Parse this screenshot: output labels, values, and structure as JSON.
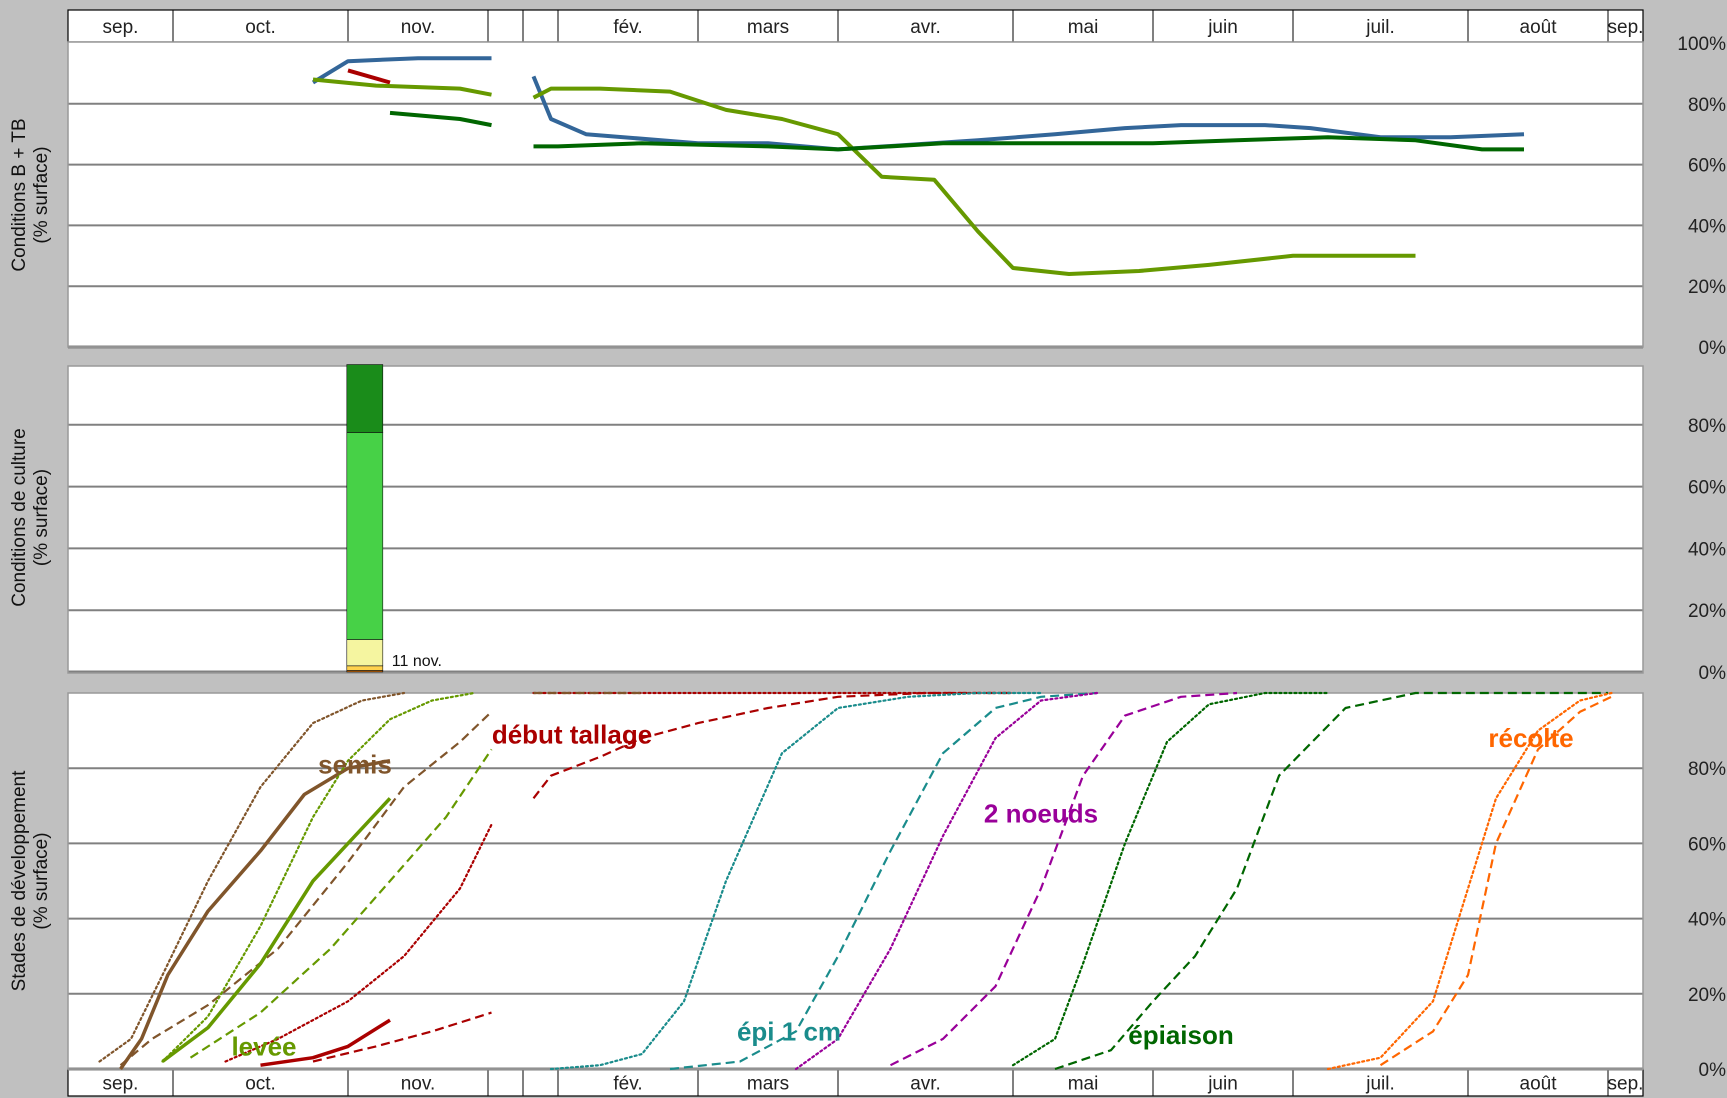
{
  "months": [
    "sep.",
    "oct.",
    "nov.",
    "",
    "",
    "fév.",
    "mars",
    "avr.",
    "mai",
    "juin",
    "juil.",
    "août",
    "sep."
  ],
  "chart_data": [
    {
      "type": "line",
      "ylabel_lines": [
        "Conditions B + TB",
        "(% surface)"
      ],
      "x_unit": "month index (0 = sep.)",
      "ylim": [
        0,
        100
      ],
      "yticks": [
        "0%",
        "20%",
        "40%",
        "60%",
        "80%",
        "100%"
      ],
      "grid": true,
      "series": [
        {
          "color": "#336699",
          "x": [
            1.8,
            2.0,
            2.5,
            3.1
          ],
          "y": [
            87,
            94,
            95,
            95
          ]
        },
        {
          "color": "#336699",
          "x": [
            4.3,
            4.8,
            5.2,
            6.0,
            6.5,
            7.0,
            7.8,
            8.3,
            8.8,
            9.2,
            9.8,
            10.1,
            10.5,
            10.9,
            11.4
          ],
          "y": [
            89,
            75,
            70,
            67,
            67,
            65,
            68,
            70,
            72,
            73,
            73,
            72,
            69,
            69,
            70
          ]
        },
        {
          "color": "#aa0000",
          "x": [
            2.0,
            2.3
          ],
          "y": [
            91,
            87
          ]
        },
        {
          "color": "#669900",
          "x": [
            1.8,
            2.2,
            2.8,
            3.1
          ],
          "y": [
            88,
            86,
            85,
            83
          ]
        },
        {
          "color": "#669900",
          "x": [
            4.3,
            4.8,
            5.3,
            5.8,
            6.2,
            6.6,
            7.0,
            7.25,
            7.55,
            7.8,
            8.0,
            8.4,
            8.9,
            9.4,
            10.0,
            10.7
          ],
          "y": [
            82,
            85,
            85,
            84,
            78,
            75,
            70,
            56,
            55,
            38,
            26,
            24,
            25,
            27,
            30,
            30
          ]
        },
        {
          "color": "#006600",
          "x": [
            2.3,
            2.8,
            3.1
          ],
          "y": [
            77,
            75,
            73
          ]
        },
        {
          "color": "#006600",
          "x": [
            4.3,
            5.0,
            5.6,
            6.5,
            7.0,
            7.6,
            8.3,
            9.0,
            9.6,
            10.2,
            10.7,
            11.1,
            11.4
          ],
          "y": [
            66,
            66,
            67,
            66,
            65,
            67,
            67,
            67,
            68,
            69,
            68,
            65,
            65
          ]
        }
      ]
    },
    {
      "type": "bar",
      "ylabel_lines": [
        "Conditions de culture",
        "(% surface)"
      ],
      "categories": [
        "11 nov."
      ],
      "ylim": [
        0,
        100
      ],
      "yticks": [
        "0%",
        "20%",
        "40%",
        "60%",
        "80%"
      ],
      "grid": true,
      "x": 2.12,
      "stack_colors": [
        "#cc6600",
        "#ffd24d",
        "#f5f5a0",
        "#47d147",
        "#1a8c1a"
      ],
      "stack_values": [
        0.5,
        1.5,
        8.5,
        67,
        22
      ]
    },
    {
      "type": "line",
      "ylabel_lines": [
        "Stades de développement",
        "(% surface)"
      ],
      "ylim": [
        0,
        100
      ],
      "yticks": [
        "0%",
        "20%",
        "40%",
        "60%",
        "80%"
      ],
      "grid": true,
      "series": [
        {
          "color": "#80552b",
          "dash": "dot",
          "x": [
            0.3,
            0.6,
            0.9,
            1.2,
            1.5,
            1.8,
            2.1,
            2.4
          ],
          "y": [
            2,
            8,
            25,
            50,
            75,
            92,
            98,
            100
          ]
        },
        {
          "color": "#80552b",
          "dash": "solid",
          "x": [
            0.5,
            0.7,
            0.95,
            1.2,
            1.5,
            1.75,
            2.0,
            2.3
          ],
          "y": [
            0,
            8,
            25,
            42,
            58,
            73,
            80,
            82
          ]
        },
        {
          "color": "#80552b",
          "dash": "dash",
          "x": [
            0.5,
            0.8,
            1.2,
            1.6,
            2.0,
            2.4,
            2.8,
            3.1
          ],
          "y": [
            1,
            8,
            17,
            32,
            55,
            75,
            87,
            95
          ]
        },
        {
          "color": "#669900",
          "dash": "dot",
          "x": [
            0.9,
            1.2,
            1.5,
            1.8,
            2.0,
            2.3,
            2.6,
            2.9
          ],
          "y": [
            2,
            14,
            38,
            67,
            82,
            93,
            98,
            100
          ]
        },
        {
          "color": "#669900",
          "dash": "solid",
          "x": [
            0.9,
            1.2,
            1.5,
            1.8,
            2.0,
            2.3
          ],
          "y": [
            2,
            11,
            28,
            50,
            60,
            72
          ]
        },
        {
          "color": "#669900",
          "dash": "dash",
          "x": [
            1.1,
            1.5,
            1.9,
            2.3,
            2.7,
            3.1
          ],
          "y": [
            3,
            15,
            32,
            50,
            67,
            85
          ]
        },
        {
          "color": "#aa0000",
          "dash": "dot",
          "x": [
            1.3,
            1.6,
            2.0,
            2.4,
            2.8,
            3.1
          ],
          "y": [
            2,
            8,
            18,
            30,
            48,
            65
          ]
        },
        {
          "color": "#aa0000",
          "dash": "solid",
          "x": [
            1.5,
            1.8,
            2.0,
            2.3
          ],
          "y": [
            1,
            3,
            6,
            13
          ]
        },
        {
          "color": "#aa0000",
          "dash": "dash",
          "x": [
            1.8,
            2.2,
            2.6,
            3.1
          ],
          "y": [
            2,
            6,
            10,
            15
          ]
        },
        {
          "color": "#aa0000",
          "dash": "dash",
          "x": [
            4.3,
            4.8,
            5.3,
            5.6,
            6.0,
            6.5,
            7.0,
            7.5,
            8.0
          ],
          "y": [
            72,
            78,
            83,
            88,
            92,
            96,
            99,
            100,
            100
          ]
        },
        {
          "color": "#aa0000",
          "dash": "dot",
          "x": [
            4.3,
            5.0,
            6.0,
            7.0,
            8.0
          ],
          "y": [
            100,
            100,
            100,
            100,
            100
          ]
        },
        {
          "color": "#80552b",
          "dash": "dash",
          "x": [
            4.3,
            5.0,
            5.6
          ],
          "y": [
            100,
            100,
            100
          ]
        },
        {
          "color": "#1a8c8c",
          "dash": "dot",
          "x": [
            4.8,
            5.3,
            5.6,
            5.9,
            6.2,
            6.6,
            7.0,
            7.4,
            7.8,
            8.2
          ],
          "y": [
            0,
            1,
            4,
            18,
            50,
            84,
            96,
            99,
            100,
            100
          ]
        },
        {
          "color": "#1a8c8c",
          "dash": "dash",
          "x": [
            5.8,
            6.3,
            6.7,
            7.0,
            7.3,
            7.6,
            7.9,
            8.2,
            8.6
          ],
          "y": [
            0,
            2,
            10,
            30,
            58,
            84,
            96,
            99,
            100
          ]
        },
        {
          "color": "#990099",
          "dash": "dot",
          "x": [
            6.7,
            7.0,
            7.3,
            7.6,
            7.9,
            8.2,
            8.6
          ],
          "y": [
            0,
            8,
            32,
            62,
            88,
            98,
            100
          ]
        },
        {
          "color": "#990099",
          "dash": "dash",
          "x": [
            7.3,
            7.6,
            7.9,
            8.2,
            8.5,
            8.8,
            9.2,
            9.6
          ],
          "y": [
            1,
            8,
            22,
            48,
            78,
            94,
            99,
            100
          ]
        },
        {
          "color": "#006600",
          "dash": "dot",
          "x": [
            8.0,
            8.3,
            8.5,
            8.8,
            9.1,
            9.4,
            9.8,
            10.2
          ],
          "y": [
            1,
            8,
            28,
            60,
            87,
            97,
            100,
            100
          ]
        },
        {
          "color": "#006600",
          "dash": "dash",
          "x": [
            8.3,
            8.7,
            9.0,
            9.3,
            9.6,
            9.9,
            10.3,
            10.7,
            11.1,
            11.5,
            12.0
          ],
          "y": [
            0,
            5,
            18,
            30,
            48,
            78,
            96,
            100,
            100,
            100,
            100
          ]
        },
        {
          "color": "#ff6600",
          "dash": "dot",
          "x": [
            10.2,
            10.5,
            10.8,
            11.0,
            11.2,
            11.5,
            11.8,
            12.1
          ],
          "y": [
            0,
            3,
            18,
            48,
            72,
            90,
            98,
            100
          ]
        },
        {
          "color": "#ff6600",
          "dash": "dash",
          "x": [
            10.5,
            10.8,
            11.0,
            11.2,
            11.5,
            11.8,
            12.1
          ],
          "y": [
            1,
            10,
            25,
            60,
            85,
            95,
            99
          ]
        }
      ],
      "labels": [
        {
          "text": "semis",
          "color": "#80552b",
          "x": 2.05,
          "y": 81
        },
        {
          "text": "levée",
          "color": "#669900",
          "x": 1.52,
          "y": 6
        },
        {
          "text": "début tallage",
          "color": "#aa0000",
          "x": 5.1,
          "y": 89
        },
        {
          "text": "2 noeuds",
          "color": "#990099",
          "x": 8.2,
          "y": 68
        },
        {
          "text": "épi 1 cm",
          "color": "#1a8c8c",
          "x": 6.65,
          "y": 10
        },
        {
          "text": "épiaison",
          "color": "#006600",
          "x": 9.2,
          "y": 9
        },
        {
          "text": "récolte",
          "color": "#ff6600",
          "x": 11.45,
          "y": 88
        }
      ]
    }
  ]
}
